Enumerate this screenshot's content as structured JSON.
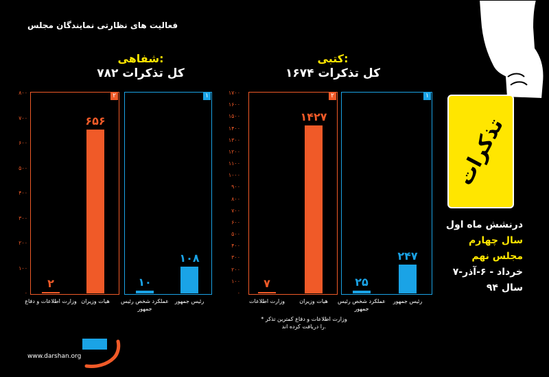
{
  "page_title": "فعالیت های نظارتی نمایندگان مجلس",
  "site": "www.darshan.org",
  "card_word": "تذکرات",
  "info_lines": [
    "درنشش ماه اول",
    "سال چهارم",
    "مجلس نهم",
    "۷-خرداد - ۶-آذر",
    "سال ۹۴"
  ],
  "note": "* وزارت اطلاعات و دفاع کمترین تذکر را دریافت کرده اند.",
  "colors": {
    "orange": "#f05a28",
    "blue": "#1aa3e6",
    "yellow": "#ffe600"
  },
  "chart_data": [
    {
      "type": "bar",
      "title": "شفاهی:",
      "subtitle": "کل تذکرات ۷۸۲",
      "ylim": [
        0,
        800
      ],
      "yticks": [
        "۰",
        "۱۰۰",
        "۲۰۰",
        "۳۰۰",
        "۴۰۰",
        "۵۰۰",
        "۶۰۰",
        "۷۰۰",
        "۸۰۰"
      ],
      "groups": [
        {
          "badge": "۲",
          "color": "orange",
          "bars": [
            {
              "label": "وزارت اطلاعات و دفاع",
              "value": 2,
              "value_label": "۲"
            },
            {
              "label": "هیات وزیران",
              "value": 656,
              "value_label": "۶۵۶"
            }
          ]
        },
        {
          "badge": "۱",
          "color": "blue",
          "bars": [
            {
              "label": "عملکرد شخص رئیس جمهور",
              "value": 10,
              "value_label": "۱۰"
            },
            {
              "label": "رئیس جمهور",
              "value": 108,
              "value_label": "۱۰۸"
            }
          ]
        }
      ]
    },
    {
      "type": "bar",
      "title": "کتبی:",
      "subtitle": "کل تذکرات ۱۶۷۴",
      "ylim": [
        0,
        1700
      ],
      "yticks": [
        "۰",
        "۱۰۰",
        "۲۰۰",
        "۳۰۰",
        "۴۰۰",
        "۵۰۰",
        "۶۰۰",
        "۷۰۰",
        "۸۰۰",
        "۹۰۰",
        "۱۰۰۰",
        "۱۱۰۰",
        "۱۲۰۰",
        "۱۳۰۰",
        "۱۴۰۰",
        "۱۵۰۰",
        "۱۶۰۰",
        "۱۷۰۰"
      ],
      "groups": [
        {
          "badge": "۲",
          "color": "orange",
          "bars": [
            {
              "label": "وزارت اطلاعات",
              "value": 7,
              "value_label": "۷"
            },
            {
              "label": "هیات وزیران",
              "value": 1427,
              "value_label": "۱۴۲۷"
            }
          ]
        },
        {
          "badge": "۱",
          "color": "blue",
          "bars": [
            {
              "label": "عملکرد شخص رئیس جمهور",
              "value": 25,
              "value_label": "۲۵"
            },
            {
              "label": "رئیس جمهور",
              "value": 247,
              "value_label": "۲۴۷"
            }
          ]
        }
      ]
    }
  ]
}
